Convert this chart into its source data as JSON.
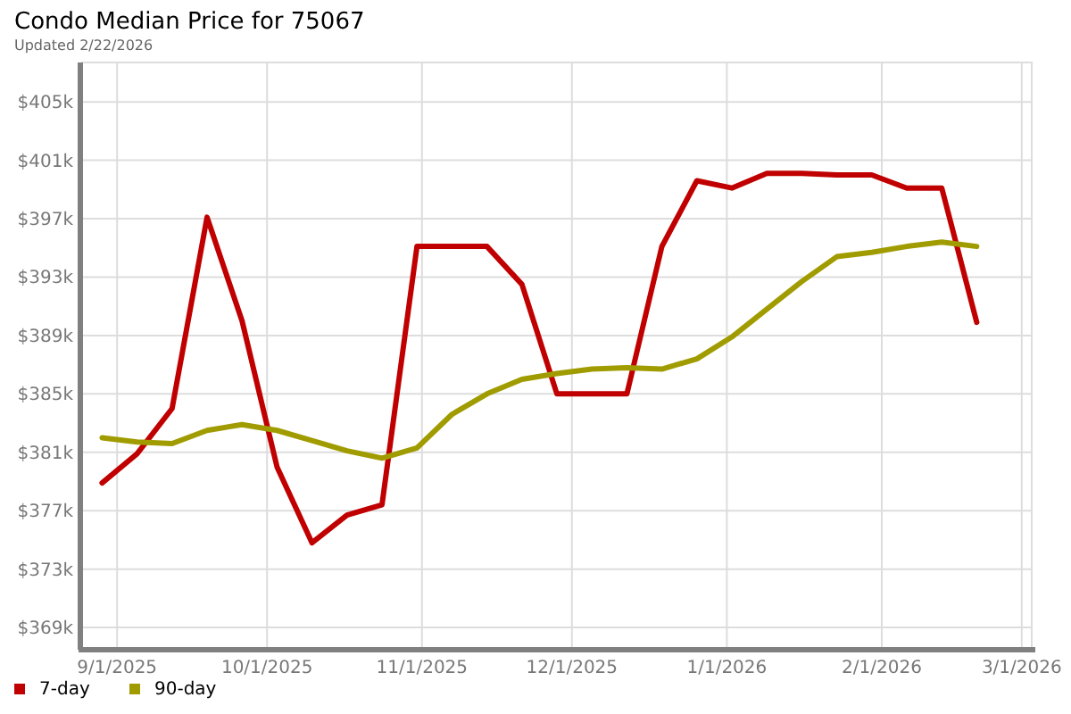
{
  "chart_data": {
    "type": "line",
    "title": "Condo Median Price for 75067",
    "subtitle": "Updated 2/22/2026",
    "x": [
      "2025-08-29",
      "2025-09-05",
      "2025-09-12",
      "2025-09-19",
      "2025-09-26",
      "2025-10-03",
      "2025-10-10",
      "2025-10-17",
      "2025-10-24",
      "2025-10-31",
      "2025-11-07",
      "2025-11-14",
      "2025-11-21",
      "2025-11-28",
      "2025-12-05",
      "2025-12-12",
      "2025-12-19",
      "2025-12-26",
      "2026-01-02",
      "2026-01-09",
      "2026-01-16",
      "2026-01-23",
      "2026-01-30",
      "2026-02-06",
      "2026-02-13",
      "2026-02-20"
    ],
    "series": [
      {
        "name": "7-day",
        "color": "#c00000",
        "values": [
          378.9,
          380.9,
          384.0,
          397.1,
          390.0,
          380.0,
          374.8,
          376.7,
          377.4,
          395.1,
          395.1,
          395.1,
          392.5,
          385.0,
          385.0,
          385.0,
          395.1,
          399.6,
          399.1,
          400.1,
          400.1,
          400.0,
          400.0,
          399.1,
          399.1,
          389.9
        ]
      },
      {
        "name": "90-day",
        "color": "#a09c00",
        "values": [
          382.0,
          381.7,
          381.6,
          382.5,
          382.9,
          382.5,
          381.8,
          381.1,
          380.6,
          381.3,
          383.6,
          385.0,
          386.0,
          386.4,
          386.7,
          386.8,
          386.7,
          387.4,
          388.9,
          390.8,
          392.7,
          394.4,
          394.7,
          395.1,
          395.4,
          395.1
        ]
      }
    ],
    "xlim": [
      "2025-08-25",
      "2026-03-03"
    ],
    "xticks": [
      {
        "value": "2025-09-01",
        "label": "9/1/2025"
      },
      {
        "value": "2025-10-01",
        "label": "10/1/2025"
      },
      {
        "value": "2025-11-01",
        "label": "11/1/2025"
      },
      {
        "value": "2025-12-01",
        "label": "12/1/2025"
      },
      {
        "value": "2026-01-01",
        "label": "1/1/2026"
      },
      {
        "value": "2026-02-01",
        "label": "2/1/2026"
      },
      {
        "value": "2026-03-01",
        "label": "3/1/2026"
      }
    ],
    "ylim": [
      367.6,
      407.7
    ],
    "yticks": [
      {
        "value": 369,
        "label": "$369k"
      },
      {
        "value": 373,
        "label": "$373k"
      },
      {
        "value": 377,
        "label": "$377k"
      },
      {
        "value": 381,
        "label": "$381k"
      },
      {
        "value": 385,
        "label": "$385k"
      },
      {
        "value": 389,
        "label": "$389k"
      },
      {
        "value": 393,
        "label": "$393k"
      },
      {
        "value": 397,
        "label": "$397k"
      },
      {
        "value": 401,
        "label": "$401k"
      },
      {
        "value": 405,
        "label": "$405k"
      }
    ],
    "grid": true,
    "legend": "bottom left",
    "marker": "none",
    "line_style": "solid"
  }
}
